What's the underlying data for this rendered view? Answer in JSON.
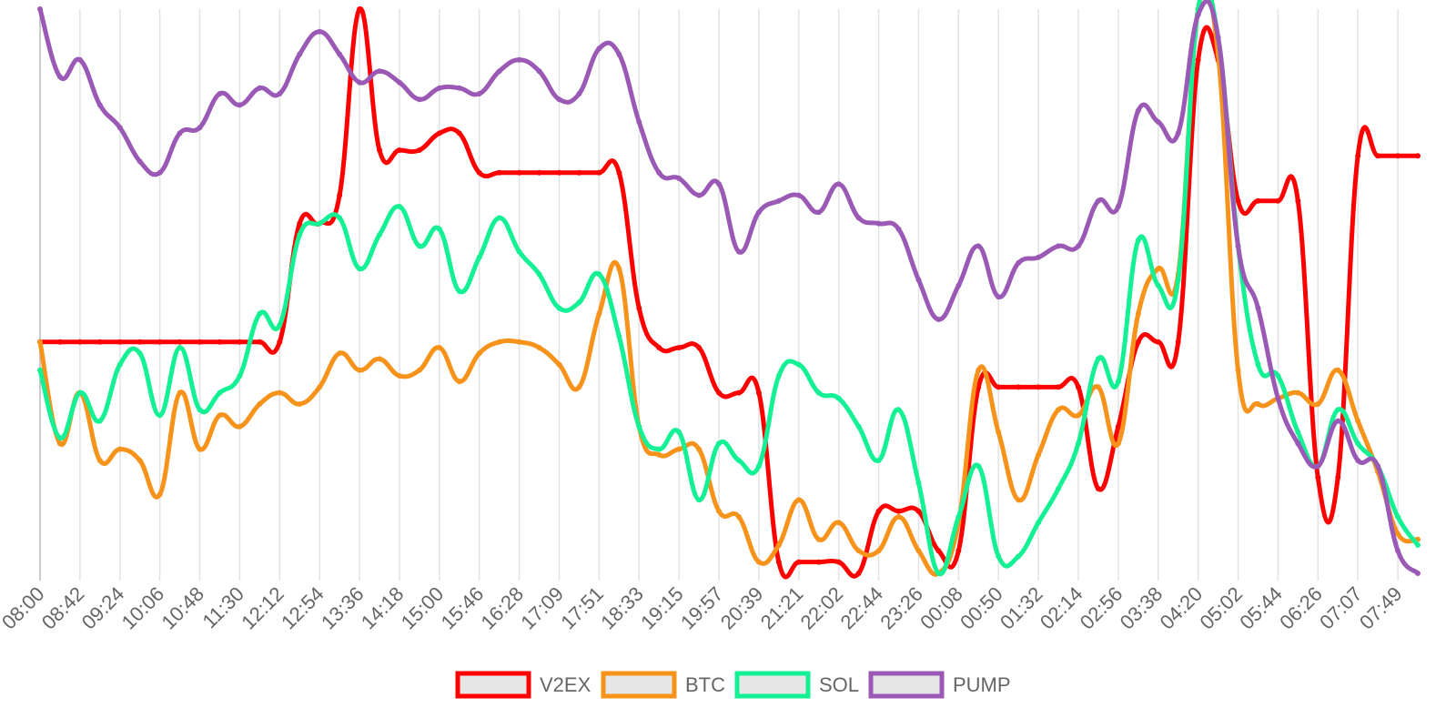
{
  "chart_data": {
    "type": "line",
    "grid": true,
    "legend": "bottom",
    "smooth": true,
    "ylim": [
      0,
      100
    ],
    "categories": [
      "08:00",
      null,
      "08:42",
      null,
      "09:24",
      null,
      "10:06",
      null,
      "10:48",
      null,
      "11:30",
      null,
      "12:12",
      null,
      "12:54",
      null,
      "13:36",
      null,
      "14:18",
      null,
      "15:00",
      null,
      "15:46",
      null,
      "16:28",
      null,
      "17:09",
      null,
      "17:51",
      null,
      "18:33",
      null,
      "19:15",
      null,
      "19:57",
      null,
      "20:39",
      null,
      "21:21",
      null,
      "22:02",
      null,
      "22:44",
      null,
      "23:26",
      null,
      "00:08",
      null,
      "00:50",
      null,
      "01:32",
      null,
      "02:14",
      null,
      "02:56",
      null,
      "03:38",
      null,
      "04:20",
      null,
      "05:02",
      null,
      "05:44",
      null,
      "06:26",
      null,
      "07:07",
      null,
      "07:49",
      null
    ],
    "series": [
      {
        "name": "V2EX",
        "color": "#ff0000",
        "values": [
          41,
          41,
          41,
          41,
          41,
          41,
          41,
          41,
          41,
          41,
          41,
          41,
          41,
          62,
          62,
          67,
          100,
          75,
          75,
          75,
          78,
          78,
          71,
          71,
          71,
          71,
          71,
          71,
          71,
          71,
          47,
          40,
          40,
          40,
          32,
          32,
          32,
          2,
          2,
          2,
          2,
          0,
          11,
          11,
          11,
          4,
          4,
          33,
          33,
          33,
          33,
          33,
          33,
          15,
          26,
          41,
          41,
          41,
          91,
          91,
          66,
          66,
          66,
          66,
          17,
          17,
          74,
          74,
          74,
          74
        ]
      },
      {
        "name": "BTC",
        "color": "#f7931a",
        "values": [
          41,
          23,
          32,
          20,
          22,
          20,
          14,
          32,
          22,
          28,
          26,
          30,
          32,
          30,
          33,
          39,
          36,
          38,
          35,
          36,
          40,
          34,
          39,
          41,
          41,
          40,
          37,
          33,
          46,
          54,
          26,
          21,
          22,
          22,
          11,
          10,
          2,
          5,
          13,
          6,
          9,
          4,
          4,
          10,
          4,
          0,
          9,
          36,
          25,
          13,
          21,
          29,
          28,
          33,
          23,
          46,
          54,
          53,
          100,
          92,
          36,
          30,
          31,
          32,
          30,
          36,
          27,
          18,
          7,
          6
        ]
      },
      {
        "name": "SOL",
        "color": "#14f195",
        "values": [
          36,
          24,
          32,
          27,
          37,
          39,
          28,
          40,
          29,
          32,
          35,
          46,
          44,
          60,
          62,
          63,
          54,
          60,
          65,
          58,
          61,
          50,
          56,
          63,
          57,
          53,
          47,
          48,
          53,
          42,
          26,
          22,
          25,
          13,
          23,
          20,
          19,
          35,
          37,
          32,
          31,
          26,
          20,
          29,
          16,
          0,
          10,
          19,
          3,
          3,
          9,
          15,
          23,
          38,
          34,
          59,
          51,
          52,
          100,
          95,
          58,
          37,
          35,
          25,
          19,
          29,
          23,
          19,
          10,
          5
        ]
      },
      {
        "name": "PUMP",
        "color": "#9b59b6",
        "values": [
          100,
          88,
          91,
          83,
          79,
          73,
          71,
          78,
          79,
          85,
          83,
          86,
          85,
          92,
          96,
          92,
          87,
          89,
          87,
          84,
          86,
          86,
          85,
          89,
          91,
          89,
          84,
          85,
          93,
          92,
          80,
          71,
          70,
          67,
          69,
          57,
          64,
          66,
          67,
          64,
          69,
          63,
          62,
          61,
          52,
          45,
          51,
          58,
          49,
          55,
          56,
          58,
          58,
          66,
          65,
          82,
          80,
          78,
          99,
          95,
          58,
          47,
          31,
          23,
          19,
          27,
          20,
          19,
          4,
          0
        ]
      }
    ]
  }
}
